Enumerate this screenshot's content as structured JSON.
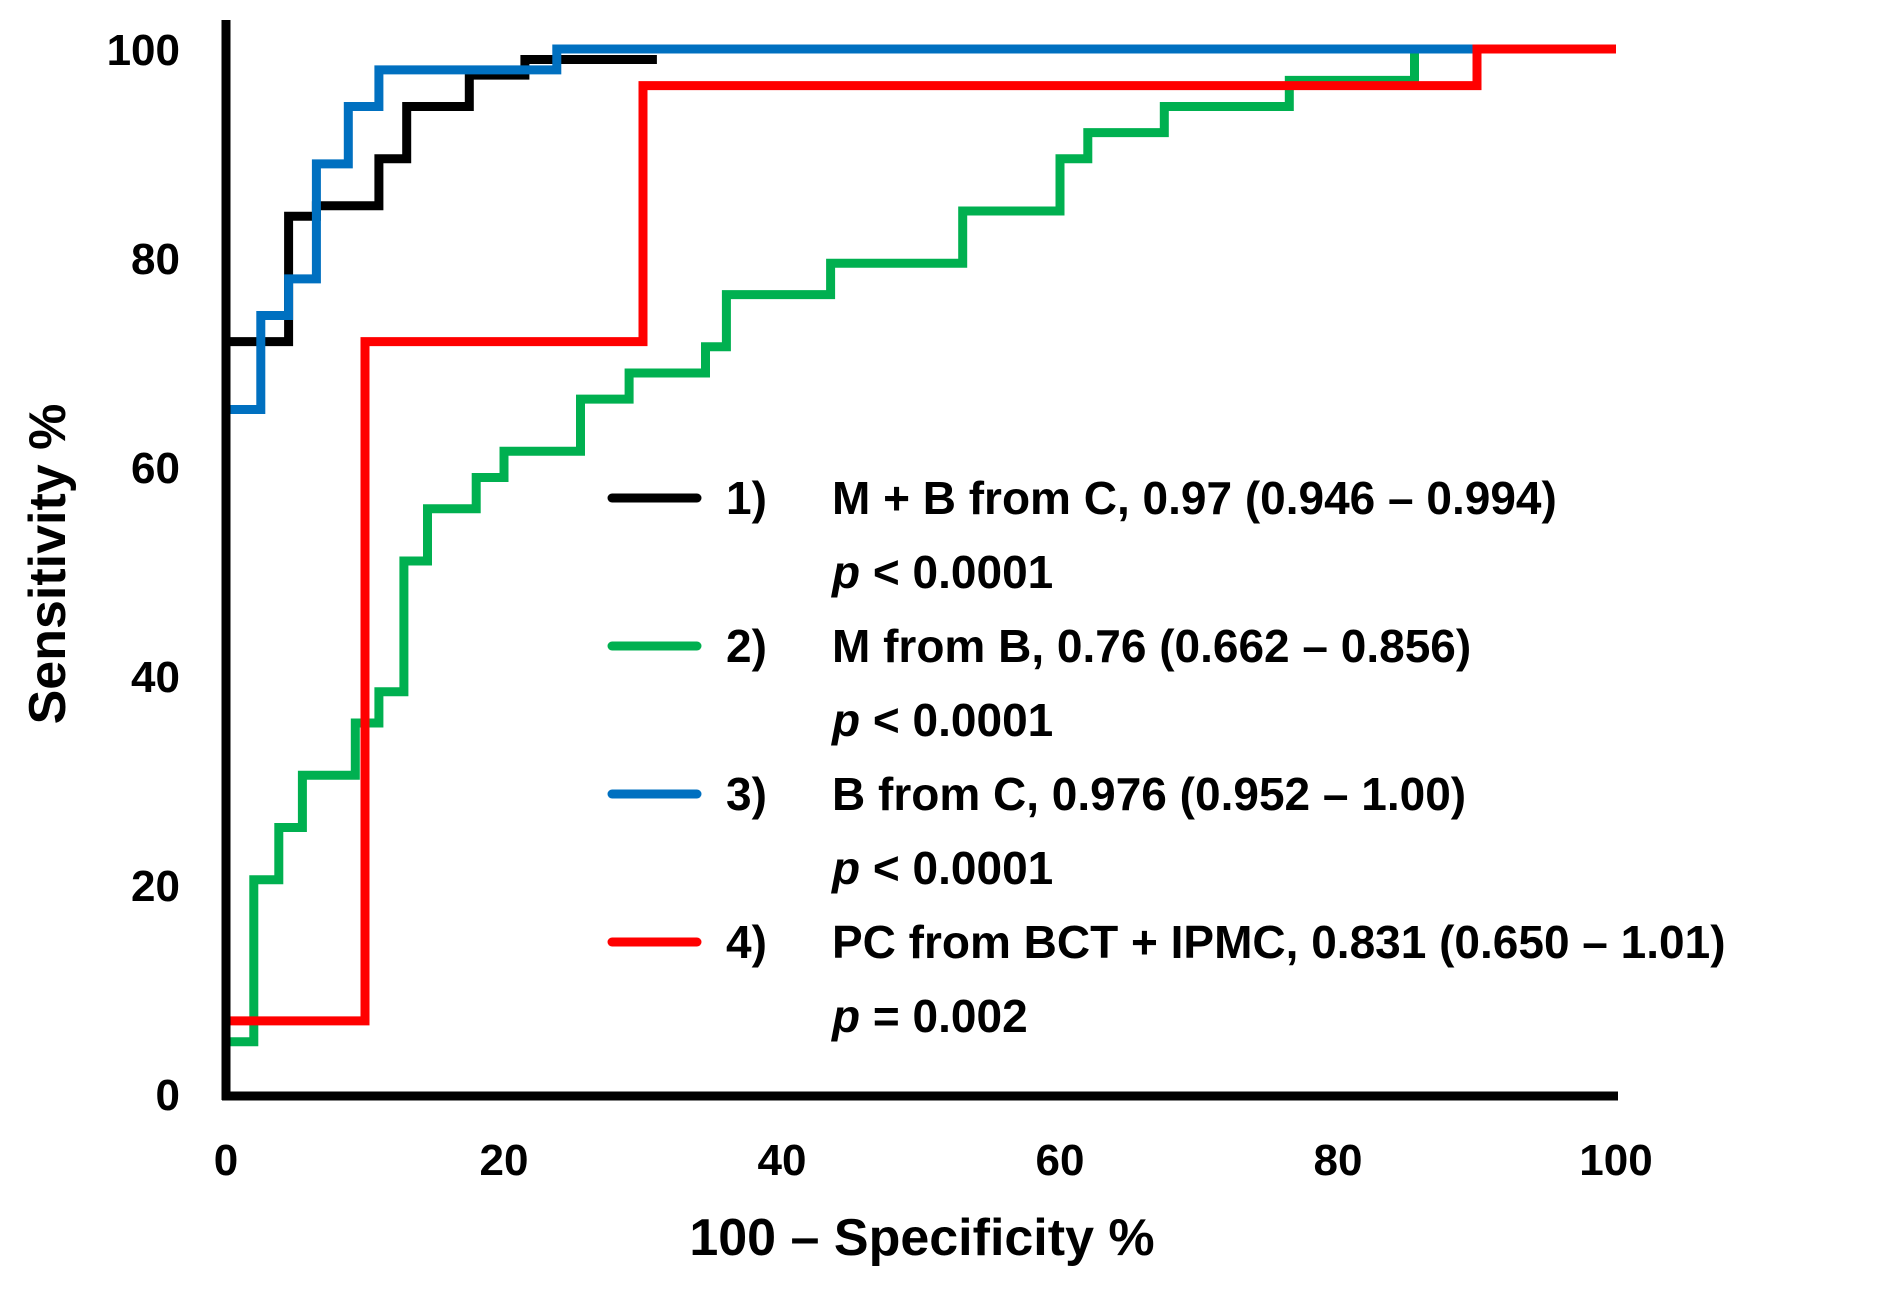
{
  "chart_data": {
    "type": "line",
    "title": "",
    "xlabel": "100 – Specificity %",
    "ylabel": "Sensitivity %",
    "xlim": [
      0,
      100
    ],
    "ylim": [
      0,
      100
    ],
    "x_ticks": [
      "0",
      "20",
      "40",
      "60",
      "80",
      "100"
    ],
    "y_ticks": [
      "0",
      "20",
      "40",
      "60",
      "80",
      "100"
    ],
    "grid": false,
    "legend_position": "center-right",
    "series": [
      {
        "name": "M + B from C",
        "num": "1)",
        "stat": "M + B from C, 0.97 (0.946 – 0.994)",
        "p_symbol": "p",
        "p_rest": " < 0.0001",
        "color": "#000000",
        "points": [
          [
            0,
            0
          ],
          [
            0,
            66
          ],
          [
            0,
            72
          ],
          [
            4.5,
            72
          ],
          [
            4.5,
            84
          ],
          [
            6.5,
            84
          ],
          [
            6.5,
            85
          ],
          [
            11,
            85
          ],
          [
            11,
            89.5
          ],
          [
            13,
            89.5
          ],
          [
            13,
            94.5
          ],
          [
            17.5,
            94.5
          ],
          [
            17.5,
            97.5
          ],
          [
            21.5,
            97.5
          ],
          [
            21.5,
            99
          ],
          [
            31,
            99
          ]
        ]
      },
      {
        "name": "M from B",
        "num": "2)",
        "stat": "M from B, 0.76 (0.662 – 0.856)",
        "p_symbol": "p",
        "p_rest": " < 0.0001",
        "color": "#00b050",
        "points": [
          [
            0,
            5
          ],
          [
            2,
            5
          ],
          [
            2,
            20.5
          ],
          [
            3.8,
            20.5
          ],
          [
            3.8,
            25.5
          ],
          [
            5.5,
            25.5
          ],
          [
            5.5,
            30.5
          ],
          [
            9.3,
            30.5
          ],
          [
            9.3,
            35.5
          ],
          [
            11,
            35.5
          ],
          [
            11,
            38.5
          ],
          [
            12.8,
            38.5
          ],
          [
            12.8,
            51
          ],
          [
            14.5,
            51
          ],
          [
            14.5,
            56
          ],
          [
            18,
            56
          ],
          [
            18,
            59
          ],
          [
            20,
            59
          ],
          [
            20,
            61.5
          ],
          [
            25.5,
            61.5
          ],
          [
            25.5,
            66.5
          ],
          [
            29,
            66.5
          ],
          [
            29,
            69
          ],
          [
            34.5,
            69
          ],
          [
            34.5,
            71.5
          ],
          [
            36,
            71.5
          ],
          [
            36,
            76.5
          ],
          [
            43.5,
            76.5
          ],
          [
            43.5,
            79.5
          ],
          [
            53,
            79.5
          ],
          [
            53,
            84.5
          ],
          [
            60,
            84.5
          ],
          [
            60,
            89.5
          ],
          [
            62,
            89.5
          ],
          [
            62,
            92
          ],
          [
            67.5,
            92
          ],
          [
            67.5,
            94.5
          ],
          [
            76.5,
            94.5
          ],
          [
            76.5,
            97
          ],
          [
            85.5,
            97
          ],
          [
            85.5,
            100
          ],
          [
            90,
            100
          ]
        ]
      },
      {
        "name": "B from C",
        "num": "3)",
        "stat": "B from C, 0.976 (0.952 – 1.00)",
        "p_symbol": "p",
        "p_rest": " < 0.0001",
        "color": "#0070c0",
        "points": [
          [
            0,
            0
          ],
          [
            0,
            65.5
          ],
          [
            2.5,
            65.5
          ],
          [
            2.5,
            74.5
          ],
          [
            4.5,
            74.5
          ],
          [
            4.5,
            78
          ],
          [
            6.5,
            78
          ],
          [
            6.5,
            89
          ],
          [
            8.8,
            89
          ],
          [
            8.8,
            94.5
          ],
          [
            11,
            94.5
          ],
          [
            11,
            98
          ],
          [
            23.8,
            98
          ],
          [
            23.8,
            100
          ],
          [
            90,
            100
          ]
        ]
      },
      {
        "name": "PC from BCT + IPMC",
        "num": "4)",
        "stat": "PC from BCT + IPMC, 0.831 (0.650 – 1.01)",
        "p_symbol": "p",
        "p_rest": " = 0.002",
        "color": "#ff0000",
        "points": [
          [
            0,
            0
          ],
          [
            0,
            7
          ],
          [
            10,
            7
          ],
          [
            10,
            72
          ],
          [
            30,
            72
          ],
          [
            30,
            96.5
          ],
          [
            90,
            96.5
          ],
          [
            90,
            100
          ],
          [
            100,
            100
          ]
        ]
      }
    ]
  }
}
